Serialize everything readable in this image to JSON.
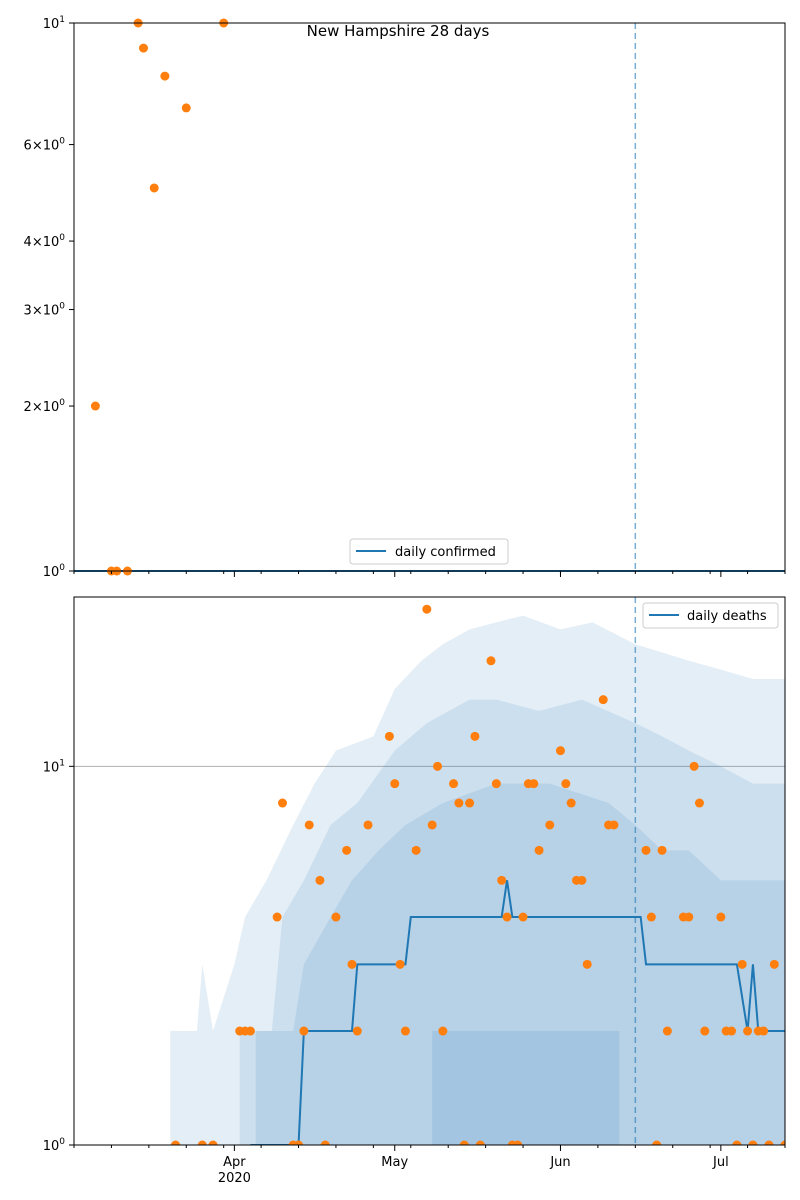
{
  "colors": {
    "line": "#1f77b4",
    "points": "#ff7f0e",
    "band": "#1f77b4",
    "grid": "#b0b0b0"
  },
  "chart_data": [
    {
      "type": "scatter",
      "title": "New Hampshire 28 days",
      "y_scale": "log",
      "ylim": [
        1,
        10
      ],
      "xlim": [
        "2020-03-02",
        "2020-07-13"
      ],
      "y_ticks": [
        {
          "value": 1,
          "base": "10",
          "exp": "0"
        },
        {
          "value": 2,
          "base": "2×10",
          "exp": "0"
        },
        {
          "value": 3,
          "base": "3×10",
          "exp": "0"
        },
        {
          "value": 4,
          "base": "4×10",
          "exp": "0"
        },
        {
          "value": 6,
          "base": "6×10",
          "exp": "0"
        },
        {
          "value": 10,
          "base": "10",
          "exp": "1"
        }
      ],
      "marker_line": "2020-06-15",
      "legend": {
        "label": "daily confirmed",
        "placement": "lower center"
      },
      "series": [
        {
          "name": "daily confirmed",
          "kind": "line",
          "points": [
            [
              "2020-03-02",
              1
            ],
            [
              "2020-07-13",
              1
            ]
          ]
        },
        {
          "kind": "scatter",
          "points": [
            [
              "2020-03-06",
              2
            ],
            [
              "2020-03-09",
              1
            ],
            [
              "2020-03-10",
              1
            ],
            [
              "2020-03-12",
              1
            ],
            [
              "2020-03-14",
              10
            ],
            [
              "2020-03-15",
              9
            ],
            [
              "2020-03-17",
              5
            ],
            [
              "2020-03-19",
              8
            ],
            [
              "2020-03-23",
              7
            ],
            [
              "2020-03-30",
              10
            ]
          ]
        }
      ]
    },
    {
      "type": "scatter",
      "y_scale": "log",
      "ylim": [
        1,
        28
      ],
      "xlim": [
        "2020-03-02",
        "2020-07-13"
      ],
      "y_ticks": [
        {
          "value": 10,
          "base": "10",
          "exp": "1"
        },
        {
          "value": 1,
          "base": "10",
          "exp": "0"
        }
      ],
      "x_ticks": [
        {
          "date": "2020-04-01",
          "label": "Apr",
          "sublabel": "2020"
        },
        {
          "date": "2020-05-01",
          "label": "May",
          "sublabel": ""
        },
        {
          "date": "2020-06-01",
          "label": "Jun",
          "sublabel": ""
        },
        {
          "date": "2020-07-01",
          "label": "Jul",
          "sublabel": ""
        }
      ],
      "grid_y": [
        10
      ],
      "marker_line": "2020-06-15",
      "legend": {
        "label": "daily deaths",
        "placement": "upper right"
      },
      "line": {
        "name": "daily deaths",
        "points": [
          [
            "2020-04-04",
            1
          ],
          [
            "2020-04-13",
            1
          ],
          [
            "2020-04-14",
            2
          ],
          [
            "2020-04-23",
            2
          ],
          [
            "2020-04-24",
            3
          ],
          [
            "2020-05-03",
            3
          ],
          [
            "2020-05-04",
            4
          ],
          [
            "2020-05-21",
            4
          ],
          [
            "2020-05-22",
            5
          ],
          [
            "2020-05-23",
            4
          ],
          [
            "2020-06-16",
            4
          ],
          [
            "2020-06-17",
            3
          ],
          [
            "2020-07-04",
            3
          ],
          [
            "2020-07-06",
            2
          ],
          [
            "2020-07-07",
            3
          ],
          [
            "2020-07-08",
            2
          ],
          [
            "2020-07-13",
            2
          ]
        ]
      },
      "bands": [
        {
          "points": [
            [
              "2020-03-20",
              1
            ],
            [
              "2020-03-20",
              2
            ],
            [
              "2020-03-25",
              2
            ],
            [
              "2020-03-26",
              3
            ],
            [
              "2020-03-28",
              2
            ],
            [
              "2020-04-01",
              3
            ],
            [
              "2020-04-03",
              4
            ],
            [
              "2020-04-07",
              5
            ],
            [
              "2020-04-12",
              7
            ],
            [
              "2020-04-16",
              9
            ],
            [
              "2020-04-20",
              11
            ],
            [
              "2020-04-27",
              12
            ],
            [
              "2020-05-01",
              16
            ],
            [
              "2020-05-06",
              19
            ],
            [
              "2020-05-10",
              21
            ],
            [
              "2020-05-15",
              23
            ],
            [
              "2020-05-20",
              24
            ],
            [
              "2020-05-25",
              25
            ],
            [
              "2020-06-01",
              23
            ],
            [
              "2020-06-07",
              24
            ],
            [
              "2020-06-15",
              21
            ],
            [
              "2020-06-20",
              20
            ],
            [
              "2020-06-25",
              19
            ],
            [
              "2020-07-01",
              18
            ],
            [
              "2020-07-07",
              17
            ],
            [
              "2020-07-13",
              17
            ],
            [
              "2020-07-13",
              1
            ]
          ]
        },
        {
          "points": [
            [
              "2020-04-02",
              1
            ],
            [
              "2020-04-02",
              2
            ],
            [
              "2020-04-08",
              2
            ],
            [
              "2020-04-10",
              4
            ],
            [
              "2020-04-14",
              5
            ],
            [
              "2020-04-19",
              7
            ],
            [
              "2020-04-24",
              8
            ],
            [
              "2020-05-01",
              11
            ],
            [
              "2020-05-07",
              13
            ],
            [
              "2020-05-15",
              15
            ],
            [
              "2020-05-20",
              15
            ],
            [
              "2020-05-28",
              14
            ],
            [
              "2020-06-05",
              15
            ],
            [
              "2020-06-15",
              13
            ],
            [
              "2020-06-20",
              12
            ],
            [
              "2020-06-25",
              11
            ],
            [
              "2020-07-01",
              10
            ],
            [
              "2020-07-07",
              9
            ],
            [
              "2020-07-13",
              9
            ],
            [
              "2020-07-13",
              1
            ]
          ]
        },
        {
          "points": [
            [
              "2020-04-05",
              1
            ],
            [
              "2020-04-05",
              2
            ],
            [
              "2020-04-12",
              2
            ],
            [
              "2020-04-14",
              3
            ],
            [
              "2020-04-19",
              4
            ],
            [
              "2020-04-23",
              5
            ],
            [
              "2020-04-28",
              6
            ],
            [
              "2020-05-03",
              7
            ],
            [
              "2020-05-10",
              8
            ],
            [
              "2020-05-20",
              9
            ],
            [
              "2020-05-30",
              9
            ],
            [
              "2020-06-10",
              8
            ],
            [
              "2020-06-15",
              7
            ],
            [
              "2020-06-20",
              6
            ],
            [
              "2020-06-25",
              6
            ],
            [
              "2020-07-01",
              5
            ],
            [
              "2020-07-07",
              5
            ],
            [
              "2020-07-13",
              5
            ],
            [
              "2020-07-13",
              1
            ]
          ]
        },
        {
          "points": [
            [
              "2020-05-08",
              1
            ],
            [
              "2020-05-08",
              2
            ],
            [
              "2020-05-20",
              2
            ],
            [
              "2020-05-25",
              2
            ],
            [
              "2020-06-05",
              2
            ],
            [
              "2020-06-12",
              2
            ],
            [
              "2020-06-12",
              1
            ]
          ]
        }
      ],
      "scatter": [
        [
          "2020-03-21",
          1
        ],
        [
          "2020-03-26",
          1
        ],
        [
          "2020-03-28",
          1
        ],
        [
          "2020-04-02",
          2
        ],
        [
          "2020-04-03",
          2
        ],
        [
          "2020-04-04",
          2
        ],
        [
          "2020-04-09",
          4
        ],
        [
          "2020-04-10",
          8
        ],
        [
          "2020-04-12",
          1
        ],
        [
          "2020-04-13",
          1
        ],
        [
          "2020-04-14",
          2
        ],
        [
          "2020-04-15",
          7
        ],
        [
          "2020-04-17",
          5
        ],
        [
          "2020-04-18",
          1
        ],
        [
          "2020-04-20",
          4
        ],
        [
          "2020-04-22",
          6
        ],
        [
          "2020-04-23",
          3
        ],
        [
          "2020-04-24",
          2
        ],
        [
          "2020-04-26",
          7
        ],
        [
          "2020-04-30",
          12
        ],
        [
          "2020-05-01",
          9
        ],
        [
          "2020-05-02",
          3
        ],
        [
          "2020-05-03",
          2
        ],
        [
          "2020-05-05",
          6
        ],
        [
          "2020-05-07",
          26
        ],
        [
          "2020-05-08",
          7
        ],
        [
          "2020-05-09",
          10
        ],
        [
          "2020-05-10",
          2
        ],
        [
          "2020-05-12",
          9
        ],
        [
          "2020-05-13",
          8
        ],
        [
          "2020-05-14",
          1
        ],
        [
          "2020-05-15",
          8
        ],
        [
          "2020-05-16",
          12
        ],
        [
          "2020-05-17",
          1
        ],
        [
          "2020-05-19",
          19
        ],
        [
          "2020-05-20",
          9
        ],
        [
          "2020-05-21",
          5
        ],
        [
          "2020-05-22",
          4
        ],
        [
          "2020-05-23",
          1
        ],
        [
          "2020-05-24",
          1
        ],
        [
          "2020-05-25",
          4
        ],
        [
          "2020-05-26",
          9
        ],
        [
          "2020-05-27",
          9
        ],
        [
          "2020-05-28",
          6
        ],
        [
          "2020-05-30",
          7
        ],
        [
          "2020-06-01",
          11
        ],
        [
          "2020-06-02",
          9
        ],
        [
          "2020-06-03",
          8
        ],
        [
          "2020-06-04",
          5
        ],
        [
          "2020-06-05",
          5
        ],
        [
          "2020-06-06",
          3
        ],
        [
          "2020-06-09",
          15
        ],
        [
          "2020-06-10",
          7
        ],
        [
          "2020-06-11",
          7
        ],
        [
          "2020-06-17",
          6
        ],
        [
          "2020-06-18",
          4
        ],
        [
          "2020-06-19",
          1
        ],
        [
          "2020-06-20",
          6
        ],
        [
          "2020-06-21",
          2
        ],
        [
          "2020-06-24",
          4
        ],
        [
          "2020-06-25",
          4
        ],
        [
          "2020-06-26",
          10
        ],
        [
          "2020-06-27",
          8
        ],
        [
          "2020-06-28",
          2
        ],
        [
          "2020-07-01",
          4
        ],
        [
          "2020-07-02",
          2
        ],
        [
          "2020-07-03",
          2
        ],
        [
          "2020-07-04",
          1
        ],
        [
          "2020-07-05",
          3
        ],
        [
          "2020-07-06",
          2
        ],
        [
          "2020-07-07",
          1
        ],
        [
          "2020-07-08",
          2
        ],
        [
          "2020-07-09",
          2
        ],
        [
          "2020-07-10",
          1
        ],
        [
          "2020-07-11",
          3
        ],
        [
          "2020-07-13",
          1
        ]
      ]
    }
  ]
}
